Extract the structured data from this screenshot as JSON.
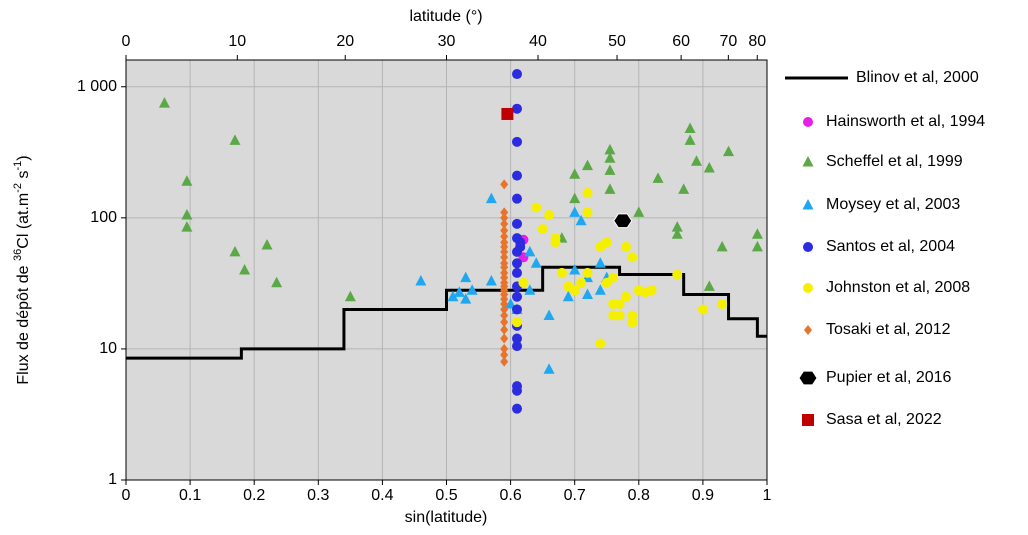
{
  "chart_data": {
    "type": "scatter",
    "log_y": true,
    "grid": true,
    "background": "#d9d9d9",
    "xlabel": "sin(latitude)",
    "x2label": "latitude (°)",
    "ylabel_parts": [
      {
        "text": "Flux de dépôt de "
      },
      {
        "text": "36",
        "sup": true
      },
      {
        "text": "Cl (at.m"
      },
      {
        "text": "-2",
        "sup": true
      },
      {
        "text": " s"
      },
      {
        "text": "-1",
        "sup": true
      },
      {
        "text": ")"
      }
    ],
    "xlim": [
      0,
      1
    ],
    "xticks": [
      0,
      0.1,
      0.2,
      0.3,
      0.4,
      0.5,
      0.6,
      0.7,
      0.8,
      0.9,
      1
    ],
    "x2ticks": [
      0,
      10,
      20,
      30,
      40,
      50,
      60,
      70,
      80
    ],
    "ylim": [
      1,
      1600
    ],
    "yticks": [
      1,
      10,
      100,
      {
        "value": 1000,
        "label": "1 000"
      }
    ],
    "series": [
      {
        "name": "Blinov et al, 2000",
        "kind": "line",
        "color": "#000000",
        "x": [
          0,
          0.18,
          0.18,
          0.34,
          0.34,
          0.5,
          0.5,
          0.65,
          0.65,
          0.77,
          0.77,
          0.87,
          0.87,
          0.94,
          0.94,
          0.985,
          0.985,
          1
        ],
        "values": [
          8.5,
          8.5,
          10,
          10,
          20,
          20,
          28,
          28,
          42,
          42,
          37,
          37,
          26,
          26,
          17,
          17,
          12.5,
          12.5
        ]
      },
      {
        "name": "Hainsworth et al, 1994",
        "marker": "circle",
        "color": "#e61ee6",
        "x": [
          0.62,
          0.62
        ],
        "values": [
          68,
          50
        ]
      },
      {
        "name": "Scheffel et al, 1999",
        "marker": "triangle",
        "color": "#5aa846",
        "x": [
          0.06,
          0.095,
          0.095,
          0.095,
          0.17,
          0.17,
          0.185,
          0.22,
          0.235,
          0.35,
          0.68,
          0.7,
          0.7,
          0.72,
          0.755,
          0.755,
          0.755,
          0.755,
          0.8,
          0.83,
          0.86,
          0.86,
          0.87,
          0.88,
          0.88,
          0.89,
          0.91,
          0.91,
          0.93,
          0.94,
          0.985,
          0.985
        ],
        "values": [
          750,
          190,
          105,
          85,
          390,
          55,
          40,
          62,
          32,
          25,
          70,
          140,
          215,
          250,
          330,
          285,
          230,
          165,
          110,
          200,
          85,
          75,
          165,
          480,
          390,
          270,
          240,
          30,
          60,
          320,
          75,
          60
        ]
      },
      {
        "name": "Moysey et al, 2003",
        "marker": "triangle",
        "color": "#1fa8f0",
        "x": [
          0.46,
          0.51,
          0.52,
          0.53,
          0.54,
          0.53,
          0.57,
          0.57,
          0.6,
          0.61,
          0.63,
          0.63,
          0.64,
          0.66,
          0.66,
          0.69,
          0.7,
          0.7,
          0.71,
          0.72,
          0.74,
          0.75,
          0.74,
          0.72
        ],
        "values": [
          33,
          25,
          27,
          35,
          28,
          24,
          33,
          140,
          22,
          20,
          55,
          28,
          45,
          18,
          7,
          25,
          40,
          110,
          95,
          26,
          28,
          35,
          45,
          35
        ]
      },
      {
        "name": "Santos et al, 2004",
        "marker": "circle",
        "color": "#2b2be0",
        "x": [
          0.61,
          0.61,
          0.61,
          0.61,
          0.61,
          0.61,
          0.61,
          0.61,
          0.61,
          0.61,
          0.61,
          0.61,
          0.61,
          0.61,
          0.61,
          0.61,
          0.61,
          0.61,
          0.61,
          0.615,
          0.615
        ],
        "values": [
          1250,
          680,
          380,
          210,
          140,
          90,
          70,
          55,
          45,
          38,
          30,
          25,
          20,
          15,
          12,
          10.5,
          5.2,
          4.8,
          3.5,
          60,
          65
        ]
      },
      {
        "name": "Johnston et al, 2008",
        "marker": "circle",
        "color": "#f5f000",
        "x": [
          0.61,
          0.62,
          0.64,
          0.66,
          0.67,
          0.67,
          0.65,
          0.68,
          0.69,
          0.7,
          0.71,
          0.72,
          0.72,
          0.74,
          0.74,
          0.75,
          0.75,
          0.76,
          0.76,
          0.77,
          0.77,
          0.78,
          0.79,
          0.79,
          0.8,
          0.81,
          0.78,
          0.79,
          0.82,
          0.86,
          0.9,
          0.93,
          0.76,
          0.72
        ],
        "values": [
          16,
          32,
          120,
          105,
          70,
          65,
          82,
          38,
          30,
          28,
          32,
          110,
          155,
          11,
          60,
          65,
          32,
          35,
          18,
          22,
          18,
          25,
          16,
          18,
          28,
          27,
          60,
          50,
          28,
          37,
          20,
          22,
          22,
          38
        ]
      },
      {
        "name": "Tosaki et al, 2012",
        "marker": "diamond",
        "color": "#e8732a",
        "x": [
          0.59,
          0.59,
          0.59,
          0.59,
          0.59,
          0.59,
          0.59,
          0.59,
          0.59,
          0.59,
          0.59,
          0.59,
          0.59,
          0.59,
          0.59,
          0.59,
          0.59,
          0.59,
          0.59,
          0.59,
          0.59,
          0.59,
          0.59,
          0.59,
          0.59,
          0.59,
          0.59,
          0.59
        ],
        "values": [
          180,
          110,
          100,
          90,
          80,
          72,
          65,
          60,
          55,
          50,
          45,
          42,
          38,
          35,
          32,
          30,
          28,
          26,
          24,
          22,
          20,
          18,
          16,
          14,
          12,
          10,
          9,
          8
        ]
      },
      {
        "name": "Pupier et al, 2016",
        "marker": "hexagon",
        "color": "#000000",
        "x": [
          0.775
        ],
        "values": [
          95
        ]
      },
      {
        "name": "Sasa et al, 2022",
        "marker": "square",
        "color": "#c00000",
        "x": [
          0.595
        ],
        "values": [
          620
        ]
      }
    ]
  }
}
